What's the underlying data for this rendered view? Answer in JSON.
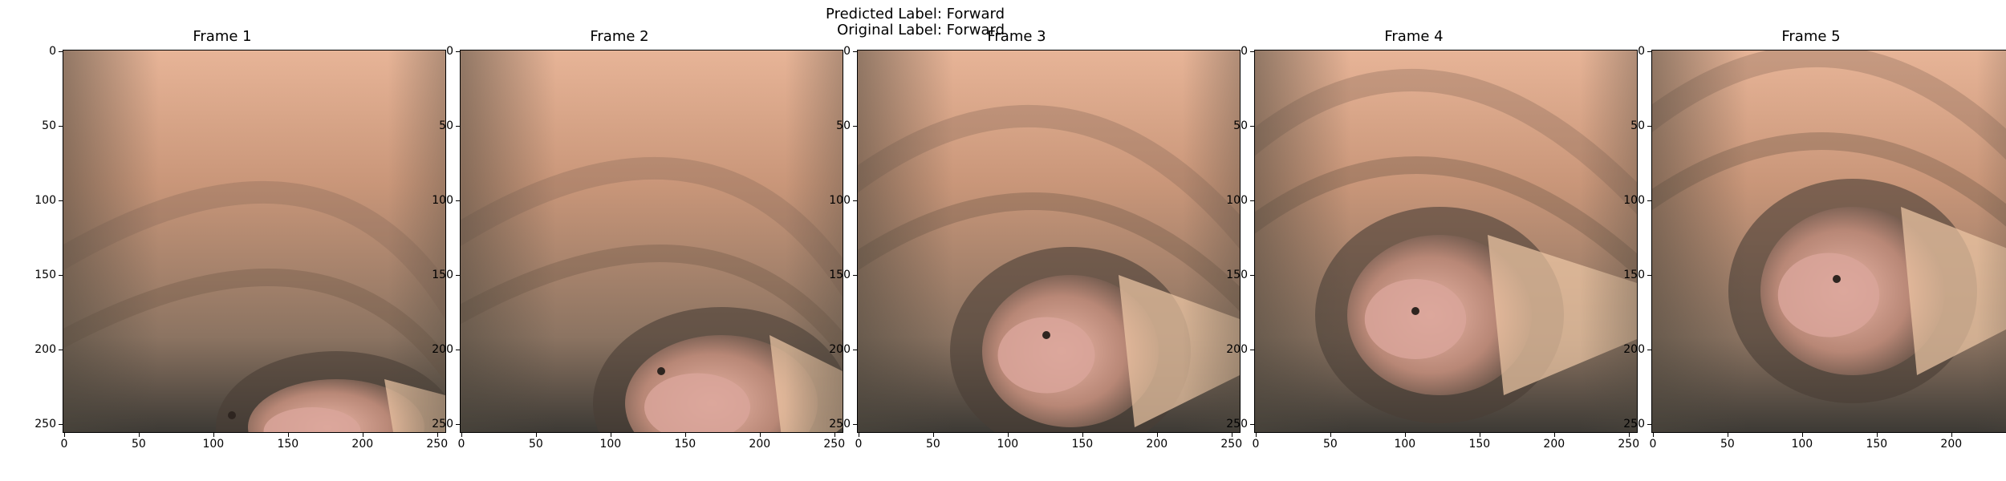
{
  "header": {
    "predicted_label": "Predicted Label: Forward",
    "original_label": "Original Label: Forward"
  },
  "frames": [
    {
      "title": "Frame 1"
    },
    {
      "title": "Frame 2"
    },
    {
      "title": "Frame 3"
    },
    {
      "title": "Frame 4"
    },
    {
      "title": "Frame 5"
    }
  ],
  "axes": {
    "x_ticks": [
      "0",
      "50",
      "100",
      "150",
      "200",
      "250"
    ],
    "y_ticks": [
      "0",
      "50",
      "100",
      "150",
      "200",
      "250"
    ],
    "x_range": [
      0,
      256
    ],
    "y_range": [
      0,
      256
    ]
  }
}
